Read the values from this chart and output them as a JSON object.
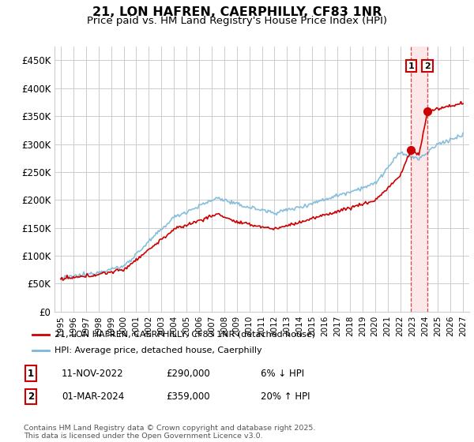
{
  "title": "21, LON HAFREN, CAERPHILLY, CF83 1NR",
  "subtitle": "Price paid vs. HM Land Registry's House Price Index (HPI)",
  "ylabel_ticks": [
    "£0",
    "£50K",
    "£100K",
    "£150K",
    "£200K",
    "£250K",
    "£300K",
    "£350K",
    "£400K",
    "£450K"
  ],
  "ylim": [
    0,
    475000
  ],
  "xlim_start": 1994.5,
  "xlim_end": 2027.5,
  "hpi_color": "#7ab8d9",
  "price_color": "#cc0000",
  "vline_color": "#dd4444",
  "background_color": "#ffffff",
  "grid_color": "#cccccc",
  "shade_color": "#fce8e8",
  "legend_label_price": "21, LON HAFREN, CAERPHILLY, CF83 1NR (detached house)",
  "legend_label_hpi": "HPI: Average price, detached house, Caerphilly",
  "annotation1_num": "1",
  "annotation1_date": "11-NOV-2022",
  "annotation1_price": "£290,000",
  "annotation1_change": "6% ↓ HPI",
  "annotation2_num": "2",
  "annotation2_date": "01-MAR-2024",
  "annotation2_price": "£359,000",
  "annotation2_change": "20% ↑ HPI",
  "footer": "Contains HM Land Registry data © Crown copyright and database right 2025.\nThis data is licensed under the Open Government Licence v3.0.",
  "sale1_x": 2022.87,
  "sale1_y": 290000,
  "sale2_x": 2024.17,
  "sale2_y": 359000,
  "marker_color": "#cc0000",
  "marker_size": 7
}
